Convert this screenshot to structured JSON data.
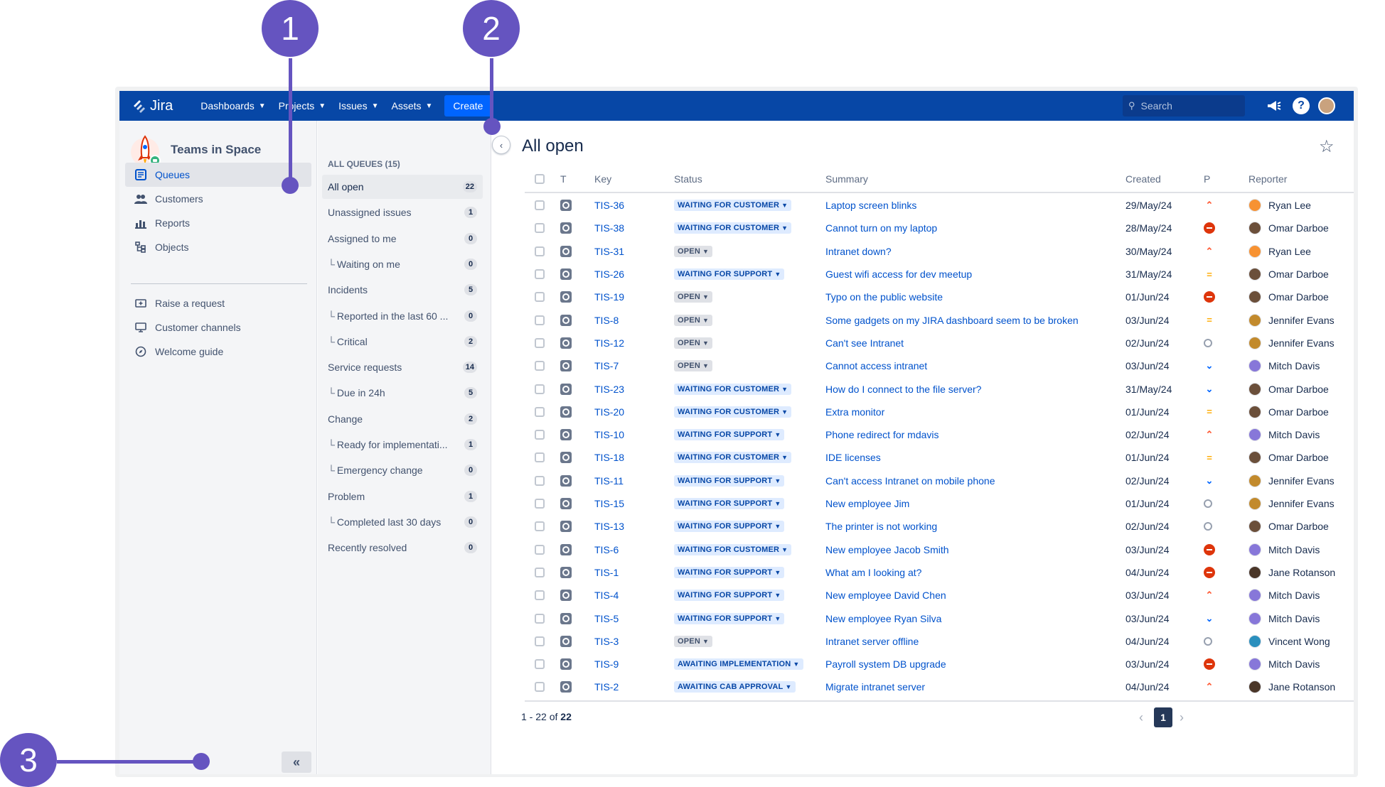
{
  "callouts": [
    "1",
    "2",
    "3"
  ],
  "topnav": {
    "logo_text": "Jira",
    "items": [
      "Dashboards",
      "Projects",
      "Issues",
      "Assets"
    ],
    "create_label": "Create",
    "search_placeholder": "Search",
    "brand_color": "#0747a6"
  },
  "sidebar": {
    "project_name": "Teams in Space",
    "items": [
      {
        "label": "Queues",
        "icon": "queues-icon"
      },
      {
        "label": "Customers",
        "icon": "customers-icon"
      },
      {
        "label": "Reports",
        "icon": "reports-icon"
      },
      {
        "label": "Objects",
        "icon": "objects-icon"
      },
      {
        "label": "Raise a request",
        "icon": "raise-request-icon"
      },
      {
        "label": "Customer channels",
        "icon": "customer-channels-icon"
      },
      {
        "label": "Welcome guide",
        "icon": "welcome-guide-icon"
      }
    ]
  },
  "queues": {
    "heading": "ALL QUEUES (15)",
    "items": [
      {
        "label": "All open",
        "count": "22"
      },
      {
        "label": "Unassigned issues",
        "count": "1"
      },
      {
        "label": "Assigned to me",
        "count": "0"
      },
      {
        "label": "Waiting on me",
        "count": "0"
      },
      {
        "label": "Incidents",
        "count": "5"
      },
      {
        "label": "Reported in the last 60 ...",
        "count": "0"
      },
      {
        "label": "Critical",
        "count": "2"
      },
      {
        "label": "Service requests",
        "count": "14"
      },
      {
        "label": "Due in 24h",
        "count": "5"
      },
      {
        "label": "Change",
        "count": "2"
      },
      {
        "label": "Ready for implementati...",
        "count": "1"
      },
      {
        "label": "Emergency change",
        "count": "0"
      },
      {
        "label": "Problem",
        "count": "1"
      },
      {
        "label": "Completed last 30 days",
        "count": "0"
      },
      {
        "label": "Recently resolved",
        "count": "0"
      }
    ]
  },
  "main": {
    "title": "All open",
    "columns": {
      "t": "T",
      "key": "Key",
      "status": "Status",
      "summary": "Summary",
      "created": "Created",
      "p": "P",
      "reporter": "Reporter"
    },
    "rows": [
      {
        "key": "TIS-36",
        "status": "WAITING FOR CUSTOMER",
        "summary": "Laptop screen blinks",
        "created": "29/May/24",
        "priority": "high",
        "reporter": "Ryan Lee",
        "avatar_color": "#f79232"
      },
      {
        "key": "TIS-38",
        "status": "WAITING FOR CUSTOMER",
        "summary": "Cannot turn on my laptop",
        "created": "28/May/24",
        "priority": "blocker",
        "reporter": "Omar Darboe",
        "avatar_color": "#6b4f3a"
      },
      {
        "key": "TIS-31",
        "status": "OPEN",
        "summary": "Intranet down?",
        "created": "30/May/24",
        "priority": "high",
        "reporter": "Ryan Lee",
        "avatar_color": "#f79232"
      },
      {
        "key": "TIS-26",
        "status": "WAITING FOR SUPPORT",
        "summary": "Guest wifi access for dev meetup",
        "created": "31/May/24",
        "priority": "medium",
        "reporter": "Omar Darboe",
        "avatar_color": "#6b4f3a"
      },
      {
        "key": "TIS-19",
        "status": "OPEN",
        "summary": "Typo on the public website",
        "created": "01/Jun/24",
        "priority": "blocker",
        "reporter": "Omar Darboe",
        "avatar_color": "#6b4f3a"
      },
      {
        "key": "TIS-8",
        "status": "OPEN",
        "summary": "Some gadgets on my JIRA dashboard seem to be broken",
        "created": "03/Jun/24",
        "priority": "medium",
        "reporter": "Jennifer Evans",
        "avatar_color": "#c28a2c"
      },
      {
        "key": "TIS-12",
        "status": "OPEN",
        "summary": "Can't see Intranet",
        "created": "02/Jun/24",
        "priority": "trivial",
        "reporter": "Jennifer Evans",
        "avatar_color": "#c28a2c"
      },
      {
        "key": "TIS-7",
        "status": "OPEN",
        "summary": "Cannot access intranet",
        "created": "03/Jun/24",
        "priority": "low",
        "reporter": "Mitch Davis",
        "avatar_color": "#8777d9"
      },
      {
        "key": "TIS-23",
        "status": "WAITING FOR CUSTOMER",
        "summary": "How do I connect to the file server?",
        "created": "31/May/24",
        "priority": "low",
        "reporter": "Omar Darboe",
        "avatar_color": "#6b4f3a"
      },
      {
        "key": "TIS-20",
        "status": "WAITING FOR CUSTOMER",
        "summary": "Extra monitor",
        "created": "01/Jun/24",
        "priority": "medium",
        "reporter": "Omar Darboe",
        "avatar_color": "#6b4f3a"
      },
      {
        "key": "TIS-10",
        "status": "WAITING FOR SUPPORT",
        "summary": "Phone redirect for mdavis",
        "created": "02/Jun/24",
        "priority": "high",
        "reporter": "Mitch Davis",
        "avatar_color": "#8777d9"
      },
      {
        "key": "TIS-18",
        "status": "WAITING FOR CUSTOMER",
        "summary": "IDE licenses",
        "created": "01/Jun/24",
        "priority": "medium",
        "reporter": "Omar Darboe",
        "avatar_color": "#6b4f3a"
      },
      {
        "key": "TIS-11",
        "status": "WAITING FOR SUPPORT",
        "summary": "Can't access Intranet on mobile phone",
        "created": "02/Jun/24",
        "priority": "low",
        "reporter": "Jennifer Evans",
        "avatar_color": "#c28a2c"
      },
      {
        "key": "TIS-15",
        "status": "WAITING FOR SUPPORT",
        "summary": "New employee Jim",
        "created": "01/Jun/24",
        "priority": "trivial",
        "reporter": "Jennifer Evans",
        "avatar_color": "#c28a2c"
      },
      {
        "key": "TIS-13",
        "status": "WAITING FOR SUPPORT",
        "summary": "The printer is not working",
        "created": "02/Jun/24",
        "priority": "trivial",
        "reporter": "Omar Darboe",
        "avatar_color": "#6b4f3a"
      },
      {
        "key": "TIS-6",
        "status": "WAITING FOR CUSTOMER",
        "summary": "New employee Jacob Smith",
        "created": "03/Jun/24",
        "priority": "blocker",
        "reporter": "Mitch Davis",
        "avatar_color": "#8777d9"
      },
      {
        "key": "TIS-1",
        "status": "WAITING FOR SUPPORT",
        "summary": "What am I looking at?",
        "created": "04/Jun/24",
        "priority": "blocker",
        "reporter": "Jane Rotanson",
        "avatar_color": "#4a3628"
      },
      {
        "key": "TIS-4",
        "status": "WAITING FOR SUPPORT",
        "summary": "New employee David Chen",
        "created": "03/Jun/24",
        "priority": "high",
        "reporter": "Mitch Davis",
        "avatar_color": "#8777d9"
      },
      {
        "key": "TIS-5",
        "status": "WAITING FOR SUPPORT",
        "summary": "New employee Ryan Silva",
        "created": "03/Jun/24",
        "priority": "low",
        "reporter": "Mitch Davis",
        "avatar_color": "#8777d9"
      },
      {
        "key": "TIS-3",
        "status": "OPEN",
        "summary": "Intranet server offline",
        "created": "04/Jun/24",
        "priority": "trivial",
        "reporter": "Vincent Wong",
        "avatar_color": "#2a8fbd"
      },
      {
        "key": "TIS-9",
        "status": "AWAITING IMPLEMENTATION",
        "summary": "Payroll system DB upgrade",
        "created": "03/Jun/24",
        "priority": "blocker",
        "reporter": "Mitch Davis",
        "avatar_color": "#8777d9"
      },
      {
        "key": "TIS-2",
        "status": "AWAITING CAB APPROVAL",
        "summary": "Migrate intranet server",
        "created": "04/Jun/24",
        "priority": "high",
        "reporter": "Jane Rotanson",
        "avatar_color": "#4a3628"
      }
    ],
    "pagination": {
      "range": "1 - 22",
      "of_label": "of",
      "total": "22",
      "current_page": "1"
    }
  }
}
